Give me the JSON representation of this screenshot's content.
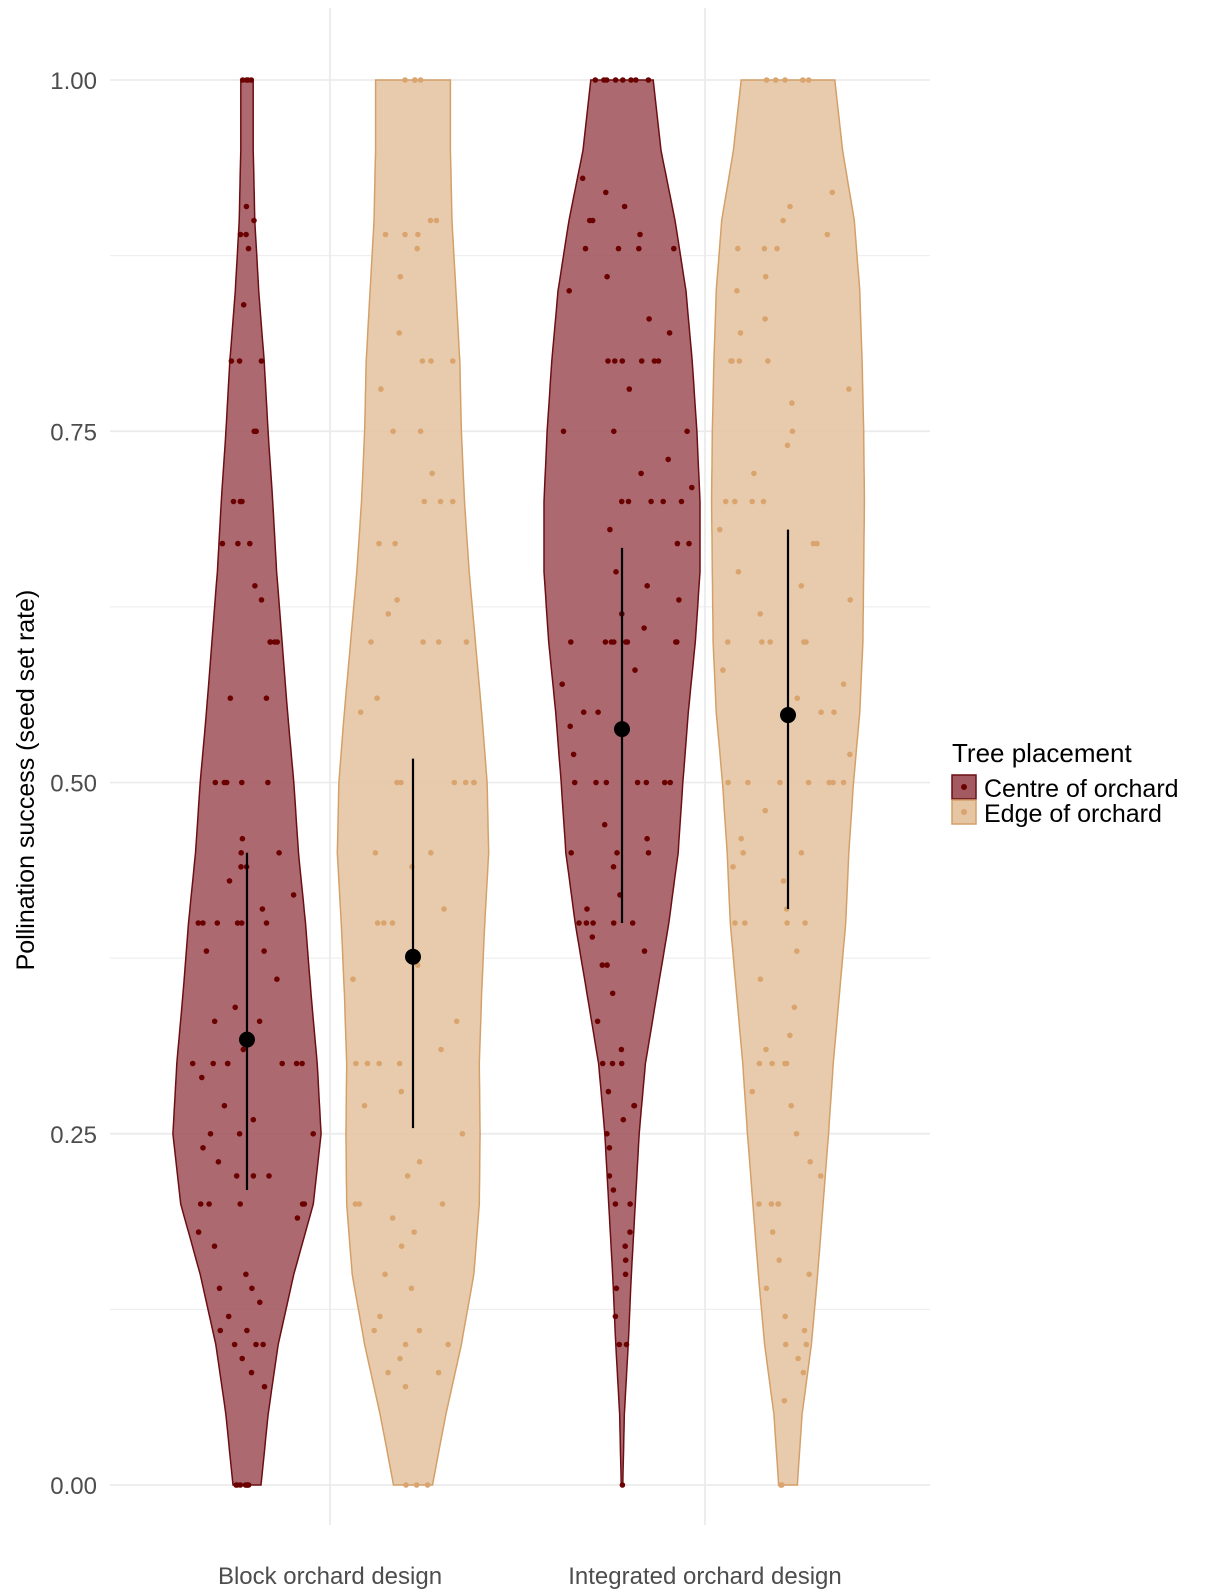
{
  "chart_data": {
    "type": "violin",
    "title": "",
    "xlabel": "",
    "ylabel": "Pollination success (seed set rate)",
    "ylim": [
      0,
      1
    ],
    "y_ticks": [
      "0.00",
      "0.25",
      "0.50",
      "0.75",
      "1.00"
    ],
    "y_tick_values": [
      0,
      0.25,
      0.5,
      0.75,
      1.0
    ],
    "grid": true,
    "categories": [
      "Block orchard design",
      "Integrated orchard design"
    ],
    "legend": {
      "title": "Tree placement",
      "position": "right",
      "entries": [
        "Centre of orchard",
        "Edge of orchard"
      ]
    },
    "colors": {
      "centre_fill": "#a35a61",
      "centre_line": "#6b0f14",
      "centre_point": "#6b0000",
      "edge_fill": "#e6c5a3",
      "edge_line": "#d4a06a",
      "edge_point": "#d9a46d",
      "summary": "#000000",
      "grid": "#ebebeb"
    },
    "series": [
      {
        "name": "Centre of orchard",
        "groups": [
          {
            "category": "Block orchard design",
            "mean": 0.317,
            "ci": [
              0.21,
              0.45
            ],
            "density": [
              [
                0,
                0.18
              ],
              [
                0.05,
                0.27
              ],
              [
                0.1,
                0.4
              ],
              [
                0.15,
                0.6
              ],
              [
                0.2,
                0.85
              ],
              [
                0.25,
                0.95
              ],
              [
                0.3,
                0.9
              ],
              [
                0.35,
                0.82
              ],
              [
                0.4,
                0.75
              ],
              [
                0.45,
                0.66
              ],
              [
                0.5,
                0.6
              ],
              [
                0.55,
                0.52
              ],
              [
                0.6,
                0.45
              ],
              [
                0.65,
                0.38
              ],
              [
                0.7,
                0.33
              ],
              [
                0.75,
                0.27
              ],
              [
                0.8,
                0.22
              ],
              [
                0.85,
                0.15
              ],
              [
                0.9,
                0.1
              ],
              [
                0.95,
                0.08
              ],
              [
                1.0,
                0.08
              ]
            ],
            "points": [
              0,
              0,
              0,
              0,
              0,
              0,
              0,
              0.07,
              0.08,
              0.09,
              0.1,
              0.1,
              0.1,
              0.11,
              0.11,
              0.12,
              0.13,
              0.14,
              0.14,
              0.15,
              0.17,
              0.18,
              0.19,
              0.2,
              0.2,
              0.2,
              0.2,
              0.2,
              0.22,
              0.22,
              0.22,
              0.23,
              0.24,
              0.25,
              0.25,
              0.25,
              0.26,
              0.27,
              0.29,
              0.3,
              0.3,
              0.3,
              0.3,
              0.3,
              0.3,
              0.3,
              0.31,
              0.33,
              0.33,
              0.34,
              0.36,
              0.38,
              0.38,
              0.4,
              0.4,
              0.4,
              0.4,
              0.4,
              0.4,
              0.41,
              0.42,
              0.43,
              0.44,
              0.44,
              0.45,
              0.45,
              0.46,
              0.5,
              0.5,
              0.5,
              0.5,
              0.5,
              0.56,
              0.56,
              0.6,
              0.6,
              0.6,
              0.6,
              0.63,
              0.64,
              0.67,
              0.67,
              0.67,
              0.7,
              0.7,
              0.7,
              0.75,
              0.75,
              0.8,
              0.8,
              0.8,
              0.84,
              0.88,
              0.89,
              0.89,
              0.9,
              0.91,
              1,
              1,
              1,
              1
            ]
          },
          {
            "category": "Integrated orchard design",
            "mean": 0.538,
            "ci": [
              0.4,
              0.667
            ],
            "density": [
              [
                0,
                0.01
              ],
              [
                0.05,
                0.03
              ],
              [
                0.1,
                0.08
              ],
              [
                0.15,
                0.12
              ],
              [
                0.2,
                0.17
              ],
              [
                0.25,
                0.22
              ],
              [
                0.3,
                0.3
              ],
              [
                0.35,
                0.45
              ],
              [
                0.4,
                0.6
              ],
              [
                0.45,
                0.72
              ],
              [
                0.5,
                0.78
              ],
              [
                0.55,
                0.85
              ],
              [
                0.6,
                0.94
              ],
              [
                0.65,
                1.0
              ],
              [
                0.7,
                1.0
              ],
              [
                0.75,
                0.96
              ],
              [
                0.8,
                0.9
              ],
              [
                0.85,
                0.82
              ],
              [
                0.9,
                0.68
              ],
              [
                0.95,
                0.5
              ],
              [
                1.0,
                0.4
              ]
            ],
            "points": [
              0,
              0.1,
              0.1,
              0.12,
              0.14,
              0.15,
              0.16,
              0.17,
              0.18,
              0.2,
              0.2,
              0.21,
              0.22,
              0.24,
              0.25,
              0.26,
              0.27,
              0.27,
              0.28,
              0.3,
              0.3,
              0.3,
              0.31,
              0.33,
              0.35,
              0.37,
              0.37,
              0.38,
              0.39,
              0.4,
              0.4,
              0.4,
              0.4,
              0.4,
              0.41,
              0.42,
              0.44,
              0.45,
              0.45,
              0.45,
              0.46,
              0.47,
              0.5,
              0.5,
              0.5,
              0.5,
              0.5,
              0.5,
              0.5,
              0.52,
              0.54,
              0.55,
              0.55,
              0.57,
              0.58,
              0.6,
              0.6,
              0.6,
              0.6,
              0.6,
              0.6,
              0.6,
              0.6,
              0.61,
              0.62,
              0.63,
              0.64,
              0.65,
              0.67,
              0.67,
              0.68,
              0.7,
              0.7,
              0.7,
              0.7,
              0.7,
              0.71,
              0.72,
              0.73,
              0.75,
              0.75,
              0.75,
              0.78,
              0.8,
              0.8,
              0.8,
              0.8,
              0.8,
              0.8,
              0.82,
              0.83,
              0.85,
              0.86,
              0.88,
              0.88,
              0.88,
              0.88,
              0.89,
              0.9,
              0.9,
              0.91,
              0.92,
              0.93,
              1,
              1,
              1,
              1,
              1,
              1,
              1,
              1
            ]
          }
        ]
      },
      {
        "name": "Edge of orchard",
        "groups": [
          {
            "category": "Block orchard design",
            "mean": 0.376,
            "ci": [
              0.254,
              0.517
            ],
            "density": [
              [
                0,
                0.25
              ],
              [
                0.05,
                0.42
              ],
              [
                0.1,
                0.62
              ],
              [
                0.15,
                0.78
              ],
              [
                0.2,
                0.85
              ],
              [
                0.25,
                0.86
              ],
              [
                0.3,
                0.85
              ],
              [
                0.35,
                0.88
              ],
              [
                0.4,
                0.92
              ],
              [
                0.45,
                0.97
              ],
              [
                0.5,
                0.95
              ],
              [
                0.55,
                0.88
              ],
              [
                0.6,
                0.8
              ],
              [
                0.65,
                0.72
              ],
              [
                0.7,
                0.66
              ],
              [
                0.75,
                0.62
              ],
              [
                0.8,
                0.6
              ],
              [
                0.85,
                0.55
              ],
              [
                0.9,
                0.5
              ],
              [
                0.95,
                0.48
              ],
              [
                1.0,
                0.48
              ]
            ],
            "points": [
              0,
              0,
              0,
              0.07,
              0.08,
              0.08,
              0.09,
              0.1,
              0.1,
              0.11,
              0.11,
              0.12,
              0.14,
              0.15,
              0.17,
              0.18,
              0.19,
              0.2,
              0.2,
              0.2,
              0.22,
              0.23,
              0.25,
              0.27,
              0.28,
              0.3,
              0.3,
              0.3,
              0.3,
              0.31,
              0.33,
              0.36,
              0.37,
              0.4,
              0.4,
              0.4,
              0.41,
              0.44,
              0.45,
              0.45,
              0.5,
              0.5,
              0.5,
              0.5,
              0.5,
              0.5,
              0.55,
              0.56,
              0.6,
              0.6,
              0.6,
              0.6,
              0.62,
              0.63,
              0.67,
              0.67,
              0.7,
              0.7,
              0.7,
              0.72,
              0.75,
              0.75,
              0.78,
              0.8,
              0.8,
              0.8,
              0.82,
              0.86,
              0.88,
              0.89,
              0.89,
              0.89,
              0.9,
              0.9,
              1,
              1,
              1,
              1
            ]
          },
          {
            "category": "Integrated orchard design",
            "mean": 0.548,
            "ci": [
              0.41,
              0.68
            ],
            "density": [
              [
                0,
                0.12
              ],
              [
                0.05,
                0.18
              ],
              [
                0.1,
                0.3
              ],
              [
                0.15,
                0.38
              ],
              [
                0.2,
                0.45
              ],
              [
                0.25,
                0.52
              ],
              [
                0.3,
                0.58
              ],
              [
                0.35,
                0.66
              ],
              [
                0.4,
                0.74
              ],
              [
                0.45,
                0.78
              ],
              [
                0.5,
                0.84
              ],
              [
                0.55,
                0.92
              ],
              [
                0.6,
                0.96
              ],
              [
                0.65,
                0.97
              ],
              [
                0.7,
                0.98
              ],
              [
                0.75,
                0.97
              ],
              [
                0.8,
                0.95
              ],
              [
                0.85,
                0.92
              ],
              [
                0.9,
                0.85
              ],
              [
                0.95,
                0.7
              ],
              [
                1.0,
                0.6
              ]
            ],
            "points": [
              0,
              0,
              0.06,
              0.08,
              0.09,
              0.1,
              0.1,
              0.11,
              0.12,
              0.14,
              0.15,
              0.16,
              0.18,
              0.2,
              0.2,
              0.2,
              0.2,
              0.22,
              0.23,
              0.25,
              0.27,
              0.28,
              0.3,
              0.3,
              0.3,
              0.3,
              0.31,
              0.32,
              0.34,
              0.36,
              0.38,
              0.4,
              0.4,
              0.4,
              0.4,
              0.41,
              0.43,
              0.44,
              0.45,
              0.45,
              0.46,
              0.48,
              0.5,
              0.5,
              0.5,
              0.5,
              0.5,
              0.5,
              0.5,
              0.52,
              0.55,
              0.55,
              0.56,
              0.57,
              0.58,
              0.6,
              0.6,
              0.6,
              0.6,
              0.6,
              0.62,
              0.63,
              0.64,
              0.65,
              0.67,
              0.67,
              0.68,
              0.7,
              0.7,
              0.7,
              0.7,
              0.72,
              0.74,
              0.75,
              0.77,
              0.78,
              0.8,
              0.8,
              0.8,
              0.8,
              0.82,
              0.83,
              0.85,
              0.86,
              0.88,
              0.88,
              0.88,
              0.89,
              0.9,
              0.91,
              0.92,
              1,
              1,
              1,
              1,
              1
            ]
          }
        ]
      }
    ]
  }
}
